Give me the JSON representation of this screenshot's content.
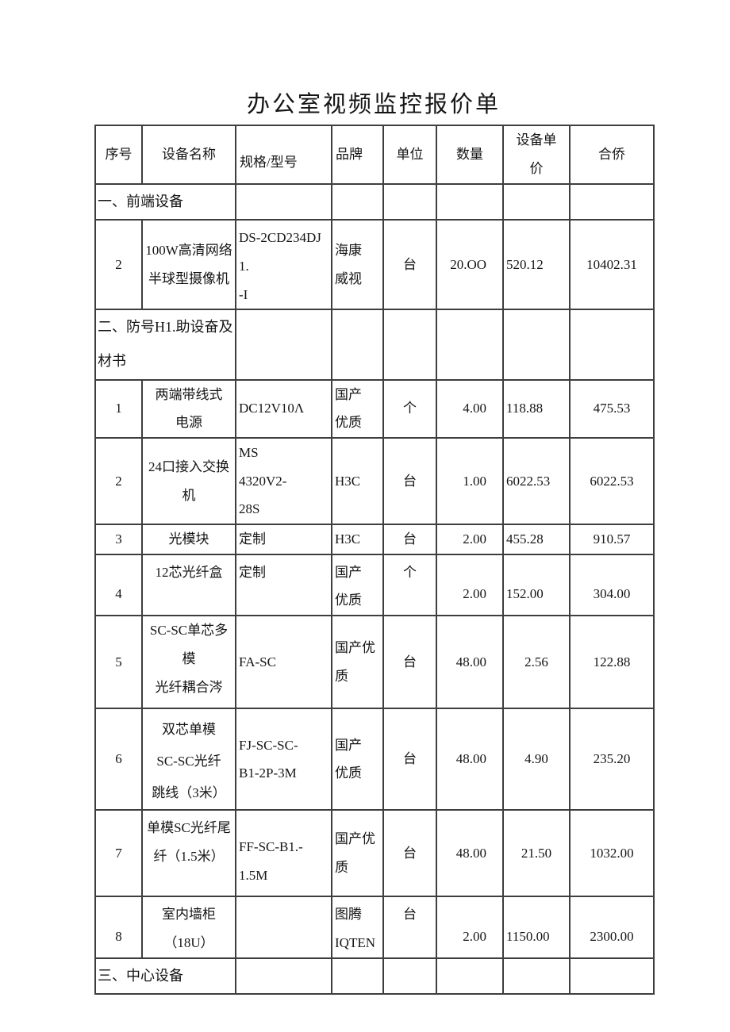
{
  "page": {
    "title": "办公室视频监控报价单"
  },
  "colors": {
    "background": "#ffffff",
    "text": "#151515",
    "border": "#3e3e3e"
  },
  "table": {
    "headers": [
      "序号",
      "设备名称",
      "规格/型号",
      "品牌",
      "单位",
      "数量",
      "设备单\n价",
      "合侨"
    ],
    "rows": [
      {
        "type": "section",
        "label": "一、前端设备"
      },
      {
        "type": "item",
        "no": "2",
        "name": "100W高清网络\n半球型摄像机",
        "spec": "DS-2CD234DJ1.\n-I",
        "brand": "海康\n威视",
        "unit": "台",
        "qty": "20.OO",
        "price": "520.12",
        "total": "10402.31"
      },
      {
        "type": "section",
        "label": "二、防号H1.助设奋及\n材书"
      },
      {
        "type": "item",
        "no": "1",
        "name": "两端带线式\n电源",
        "spec": "DC12V10Λ",
        "brand": "国产\n优质",
        "unit": "个",
        "qty": "4.00",
        "price": "118.88",
        "total": "475.53"
      },
      {
        "type": "item",
        "no": "2",
        "name": "24口接入交换\n机",
        "spec": "MS\n4320V2-\n28S",
        "brand": "H3C",
        "unit": "台",
        "qty": "1.00",
        "price": "6022.53",
        "total": "6022.53"
      },
      {
        "type": "item",
        "no": "3",
        "name": "光模块",
        "spec": "定制",
        "brand": "H3C",
        "unit": "台",
        "qty": "2.00",
        "price": "455.28",
        "total": "910.57"
      },
      {
        "type": "item",
        "no": "4",
        "name": "12芯光纤盒",
        "spec": "定制",
        "brand": "国产\n优质",
        "unit": "个",
        "qty": "2.00",
        "price": "152.00",
        "total": "304.00"
      },
      {
        "type": "item",
        "no": "5",
        "name": "SC-SC单芯多模\n光纤耦合涔",
        "spec": "FA-SC",
        "brand": "国产优\n质",
        "unit": "台",
        "qty": "48.00",
        "price": "2.56",
        "total": "122.88"
      },
      {
        "type": "item",
        "no": "6",
        "name": "双芯单模\nSC-SC光纤\n跳线（3米）",
        "spec": "FJ-SC-SC-\nB1-2P-3M",
        "brand": "国产\n优质",
        "unit": "台",
        "qty": "48.00",
        "price": "4.90",
        "total": "235.20"
      },
      {
        "type": "item",
        "no": "7",
        "name": "单模SC光纤尾\n纤（1.5米）",
        "spec": "FF-SC-B1.-\n1.5M",
        "brand": "国产优\n质",
        "unit": "台",
        "qty": "48.00",
        "price": "21.50",
        "total": "1032.00"
      },
      {
        "type": "item",
        "no": "8",
        "name": "室内墙柜\n（18U）",
        "spec": "",
        "brand": "图腾\nIQTEN",
        "unit": "台",
        "qty": "2.00",
        "price": "1150.00",
        "total": "2300.00"
      },
      {
        "type": "section",
        "label": "三、中心设备"
      }
    ]
  }
}
